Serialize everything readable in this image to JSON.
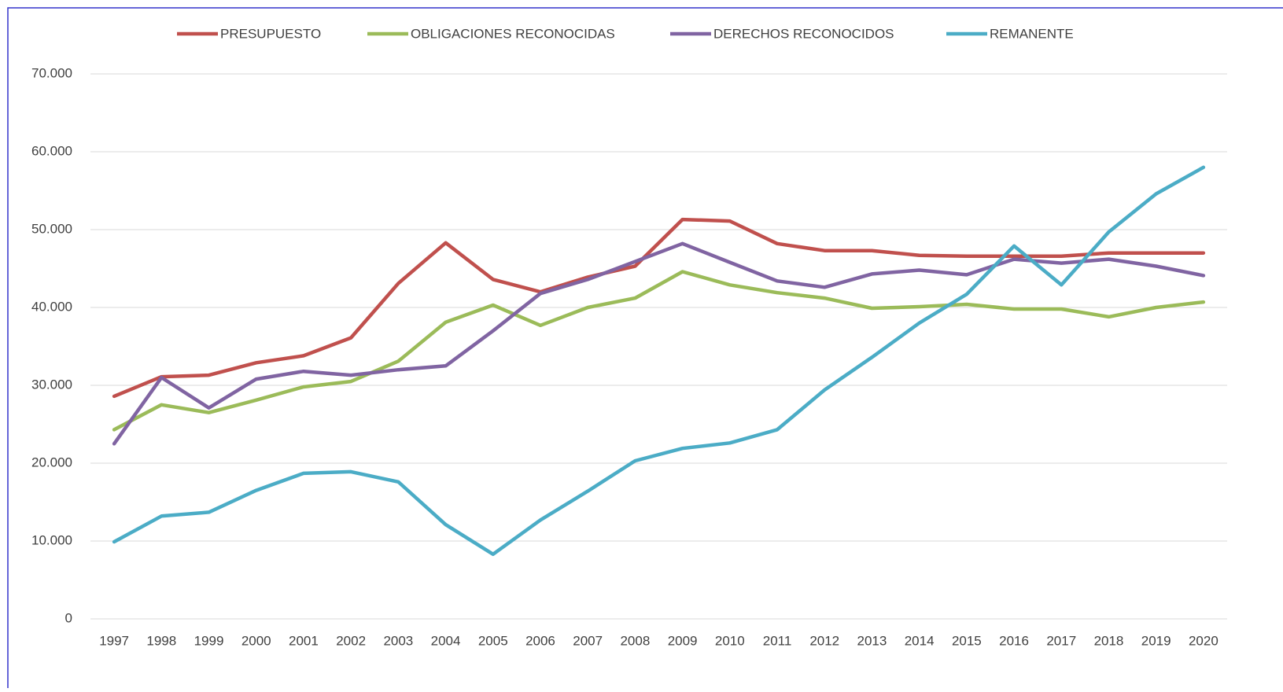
{
  "chart_data": {
    "type": "line",
    "categories": [
      "1997",
      "1998",
      "1999",
      "2000",
      "2001",
      "2002",
      "2003",
      "2004",
      "2005",
      "2006",
      "2007",
      "2008",
      "2009",
      "2010",
      "2011",
      "2012",
      "2013",
      "2014",
      "2015",
      "2016",
      "2017",
      "2018",
      "2019",
      "2020"
    ],
    "series": [
      {
        "name": "PRESUPUESTO",
        "color": "#c0504d",
        "values": [
          28600,
          31100,
          31300,
          32900,
          33800,
          36100,
          43100,
          48300,
          43600,
          42000,
          43900,
          45300,
          51300,
          51100,
          48200,
          47300,
          47300,
          46700,
          46600,
          46600,
          46600,
          47000,
          47000,
          47000
        ]
      },
      {
        "name": "OBLIGACIONES RECONOCIDAS",
        "color": "#9bbb59",
        "values": [
          24300,
          27500,
          26500,
          28100,
          29800,
          30500,
          33100,
          38100,
          40300,
          37700,
          40000,
          41200,
          44600,
          42900,
          41900,
          41200,
          39900,
          40100,
          40400,
          39800,
          39800,
          38800,
          40000,
          40700
        ]
      },
      {
        "name": "DERECHOS RECONOCIDOS",
        "color": "#8064a2",
        "values": [
          22500,
          31000,
          27100,
          30800,
          31800,
          31300,
          32000,
          32500,
          37000,
          41800,
          43600,
          45900,
          48200,
          45800,
          43400,
          42600,
          44300,
          44800,
          44200,
          46200,
          45700,
          46200,
          45300,
          44100
        ]
      },
      {
        "name": "REMANENTE",
        "color": "#4bacc6",
        "values": [
          9900,
          13200,
          13700,
          16500,
          18700,
          18900,
          17600,
          12100,
          8300,
          12700,
          16400,
          20300,
          21900,
          22600,
          24300,
          29400,
          33600,
          38000,
          41700,
          47900,
          42900,
          49700,
          54600,
          58000
        ]
      }
    ],
    "ylim": [
      0,
      70000
    ],
    "yticks": [
      0,
      {
        "value": 10000,
        "label": "10.000"
      },
      {
        "value": 20000,
        "label": "20.000"
      },
      {
        "value": 30000,
        "label": "30.000"
      },
      {
        "value": 40000,
        "label": "40.000"
      },
      {
        "value": 50000,
        "label": "50.000"
      },
      {
        "value": 60000,
        "label": "60.000"
      },
      {
        "value": 70000,
        "label": "70.000"
      }
    ],
    "grid": true,
    "legend": "top"
  }
}
